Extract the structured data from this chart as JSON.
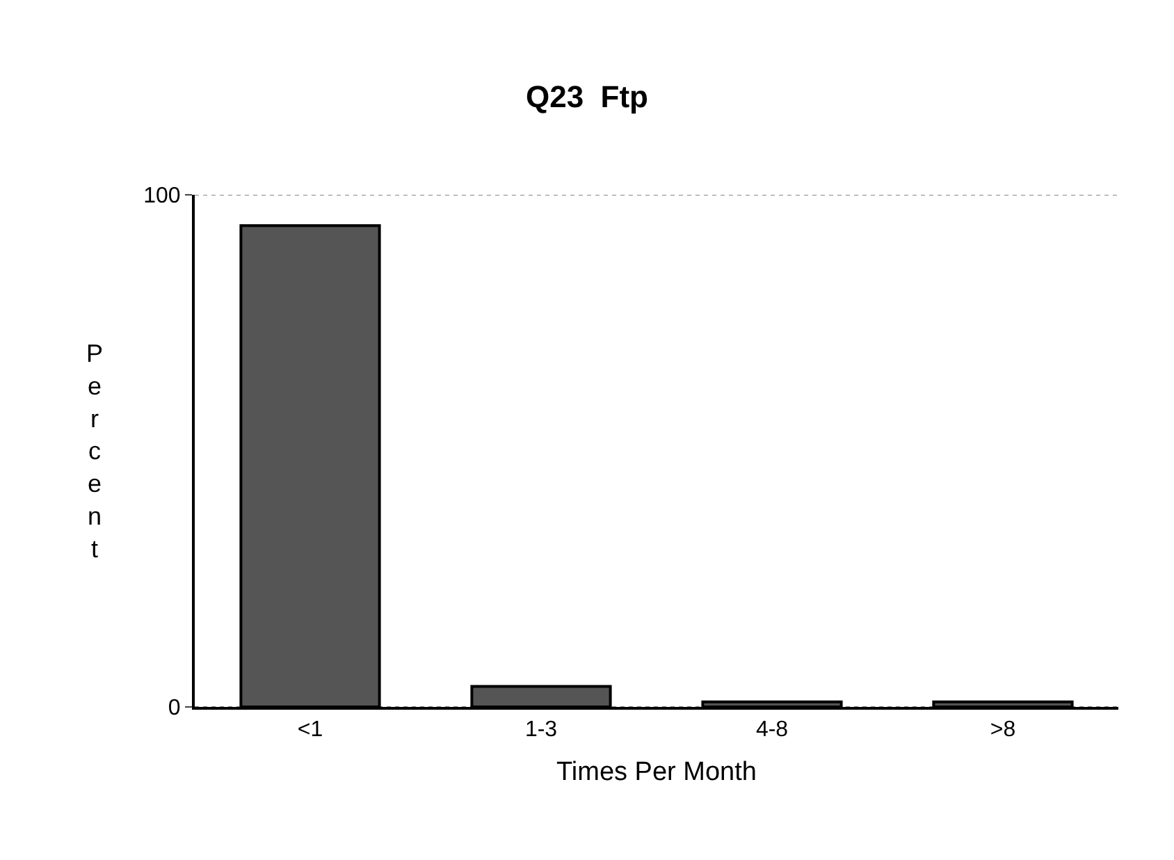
{
  "chart_data": {
    "type": "bar",
    "title": "Q23  Ftp",
    "xlabel": "Times Per Month",
    "ylabel": "Percent",
    "categories": [
      "<1",
      "1-3",
      "4-8",
      ">8"
    ],
    "values": [
      94,
      4,
      1,
      1
    ],
    "color": "#555555",
    "ylim": [
      0,
      100
    ],
    "yticks": [
      0,
      100
    ],
    "grid": "y"
  }
}
